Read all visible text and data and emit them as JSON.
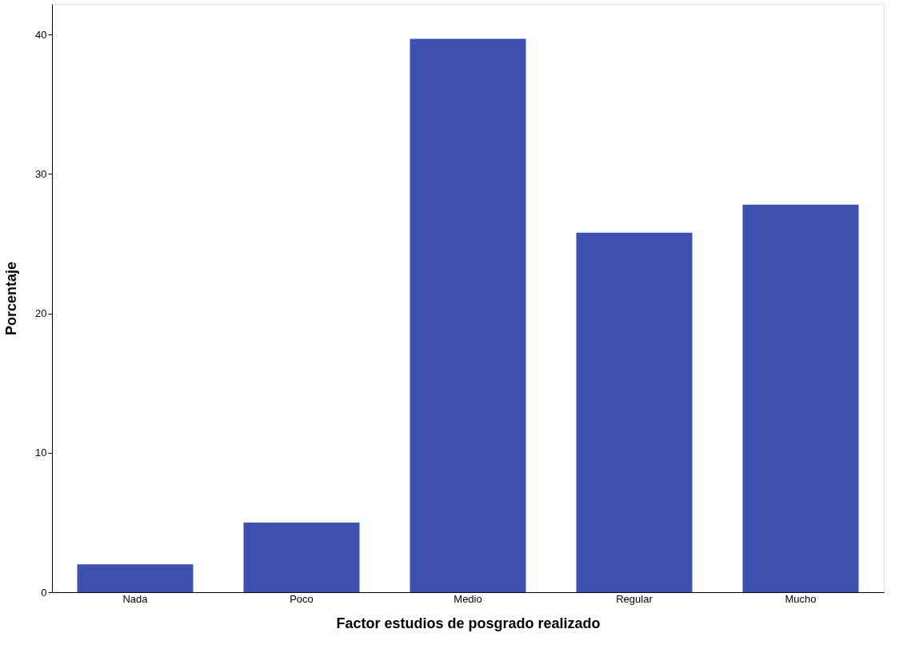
{
  "chart_data": {
    "type": "bar",
    "xlabel": "Factor estudios de posgrado realizado",
    "ylabel": "Porcentaje",
    "categories": [
      "Nada",
      "Poco",
      "Medio",
      "Regular",
      "Mucho"
    ],
    "values": [
      2.0,
      5.0,
      39.7,
      25.8,
      27.8
    ],
    "color": "#3f51b0",
    "ylim": [
      0,
      42.2
    ],
    "yticks": [
      0,
      10,
      20,
      30,
      40
    ],
    "grid": false
  }
}
